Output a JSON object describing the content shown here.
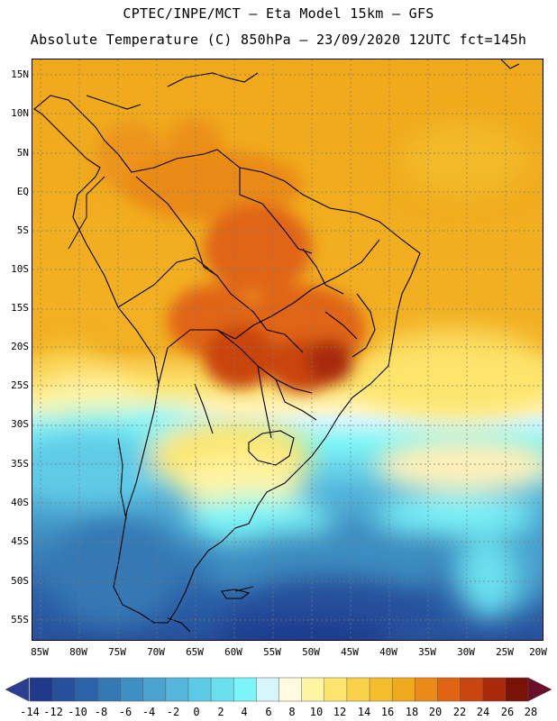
{
  "header": {
    "line1": "CPTEC/INPE/MCT –  Eta Model 15km – GFS",
    "line2": "Absolute Temperature (C) 850hPa – 23/09/2020 12UTC fct=145h"
  },
  "map": {
    "lat_labels": [
      "15N",
      "10N",
      "5N",
      "EQ",
      "5S",
      "10S",
      "15S",
      "20S",
      "25S",
      "30S",
      "35S",
      "40S",
      "45S",
      "50S",
      "55S"
    ],
    "lon_labels": [
      "85W",
      "80W",
      "75W",
      "70W",
      "65W",
      "60W",
      "55W",
      "50W",
      "45W",
      "40W",
      "35W",
      "30W",
      "25W",
      "20W"
    ]
  },
  "colorbar": {
    "labels": [
      "-14",
      "-12",
      "-10",
      "-8",
      "-6",
      "-4",
      "-2",
      "0",
      "2",
      "4",
      "6",
      "8",
      "10",
      "12",
      "14",
      "16",
      "18",
      "20",
      "22",
      "24",
      "26",
      "28"
    ],
    "colors": [
      "#1f3a8c",
      "#27509c",
      "#2c63a8",
      "#3478b4",
      "#3e8fc2",
      "#4aa3cf",
      "#55b7dc",
      "#5ecbe6",
      "#6ae0ee",
      "#7cf5f8",
      "#d6f6fb",
      "#fffbe0",
      "#fff4a2",
      "#fde56d",
      "#f9d24a",
      "#f3bd2c",
      "#f0a91a",
      "#ea8a18",
      "#e06512",
      "#c9450e",
      "#a82a0a",
      "#7a1208"
    ],
    "min_arrow_color": "#2a3f8f",
    "max_arrow_color": "#6a0f2a"
  }
}
